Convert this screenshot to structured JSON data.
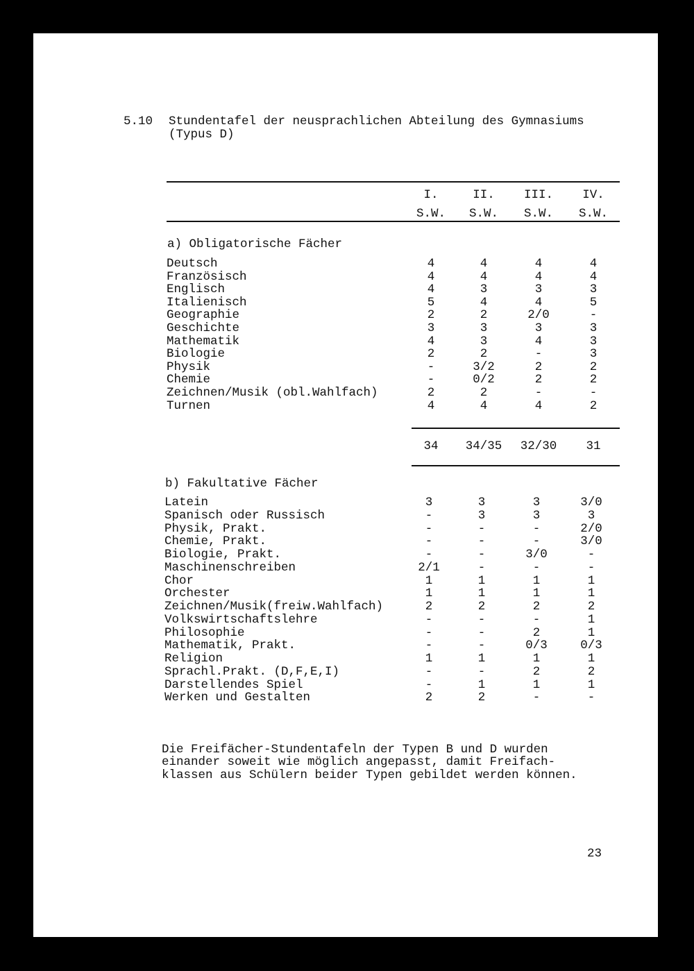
{
  "section_number": "5.10",
  "title_line1": "Stundentafel der neusprachlichen Abteilung des Gymnasiums",
  "title_line2": "(Typus D)",
  "columns": [
    "I.",
    "II.",
    "III.",
    "IV."
  ],
  "column_units": [
    "S.W.",
    "S.W.",
    "S.W.",
    "S.W."
  ],
  "obligatory": {
    "heading": "a) Obligatorische Fächer",
    "rows": [
      {
        "subject": "Deutsch",
        "values": [
          "4",
          "4",
          "4",
          "4"
        ]
      },
      {
        "subject": "Französisch",
        "values": [
          "4",
          "4",
          "4",
          "4"
        ]
      },
      {
        "subject": "Englisch",
        "values": [
          "4",
          "3",
          "3",
          "3"
        ]
      },
      {
        "subject": "Italienisch",
        "values": [
          "5",
          "4",
          "4",
          "5"
        ]
      },
      {
        "subject": "Geographie",
        "values": [
          "2",
          "2",
          "2/0",
          "-"
        ]
      },
      {
        "subject": "Geschichte",
        "values": [
          "3",
          "3",
          "3",
          "3"
        ]
      },
      {
        "subject": "Mathematik",
        "values": [
          "4",
          "3",
          "4",
          "3"
        ]
      },
      {
        "subject": "Biologie",
        "values": [
          "2",
          "2",
          "-",
          "3"
        ]
      },
      {
        "subject": "Physik",
        "values": [
          "-",
          "3/2",
          "2",
          "2"
        ]
      },
      {
        "subject": "Chemie",
        "values": [
          "-",
          "0/2",
          "2",
          "2"
        ]
      },
      {
        "subject": "Zeichnen/Musik (obl.Wahlfach)",
        "values": [
          "2",
          "2",
          "-",
          "-"
        ]
      },
      {
        "subject": "Turnen",
        "values": [
          "4",
          "4",
          "4",
          "2"
        ]
      }
    ],
    "totals": [
      "34",
      "34/35",
      "32/30",
      "31"
    ]
  },
  "optional": {
    "heading": "b) Fakultative Fächer",
    "rows": [
      {
        "subject": "Latein",
        "values": [
          "3",
          "3",
          "3",
          "3/0"
        ]
      },
      {
        "subject": "Spanisch oder Russisch",
        "values": [
          "-",
          "3",
          "3",
          "3"
        ]
      },
      {
        "subject": "Physik, Prakt.",
        "values": [
          "-",
          "-",
          "-",
          "2/0"
        ]
      },
      {
        "subject": "Chemie, Prakt.",
        "values": [
          "-",
          "-",
          "-",
          "3/0"
        ]
      },
      {
        "subject": "Biologie, Prakt.",
        "values": [
          "-",
          "-",
          "3/0",
          "-"
        ]
      },
      {
        "subject": "Maschinenschreiben",
        "values": [
          "2/1",
          "-",
          "-",
          "-"
        ]
      },
      {
        "subject": "Chor",
        "values": [
          "1",
          "1",
          "1",
          "1"
        ]
      },
      {
        "subject": "Orchester",
        "values": [
          "1",
          "1",
          "1",
          "1"
        ]
      },
      {
        "subject": "Zeichnen/Musik(freiw.Wahlfach)",
        "values": [
          "2",
          "2",
          "2",
          "2"
        ]
      },
      {
        "subject": "Volkswirtschaftslehre",
        "values": [
          "-",
          "-",
          "-",
          "1"
        ]
      },
      {
        "subject": "Philosophie",
        "values": [
          "-",
          "-",
          "2",
          "1"
        ]
      },
      {
        "subject": "Mathematik, Prakt.",
        "values": [
          "-",
          "-",
          "0/3",
          "0/3"
        ]
      },
      {
        "subject": "Religion",
        "values": [
          "1",
          "1",
          "1",
          "1"
        ]
      },
      {
        "subject": "Sprachl.Prakt. (D,F,E,I)",
        "values": [
          "-",
          "-",
          "2",
          "2"
        ]
      },
      {
        "subject": "Darstellendes Spiel",
        "values": [
          "-",
          "1",
          "1",
          "1"
        ]
      },
      {
        "subject": "Werken und Gestalten",
        "values": [
          "2",
          "2",
          "-",
          "-"
        ]
      }
    ]
  },
  "note_lines": [
    "Die Freifächer-Stundentafeln der Typen B und D wurden",
    "einander soweit wie möglich angepasst, damit Freifach-",
    "klassen aus Schülern beider Typen gebildet werden können."
  ],
  "page_number": "23"
}
